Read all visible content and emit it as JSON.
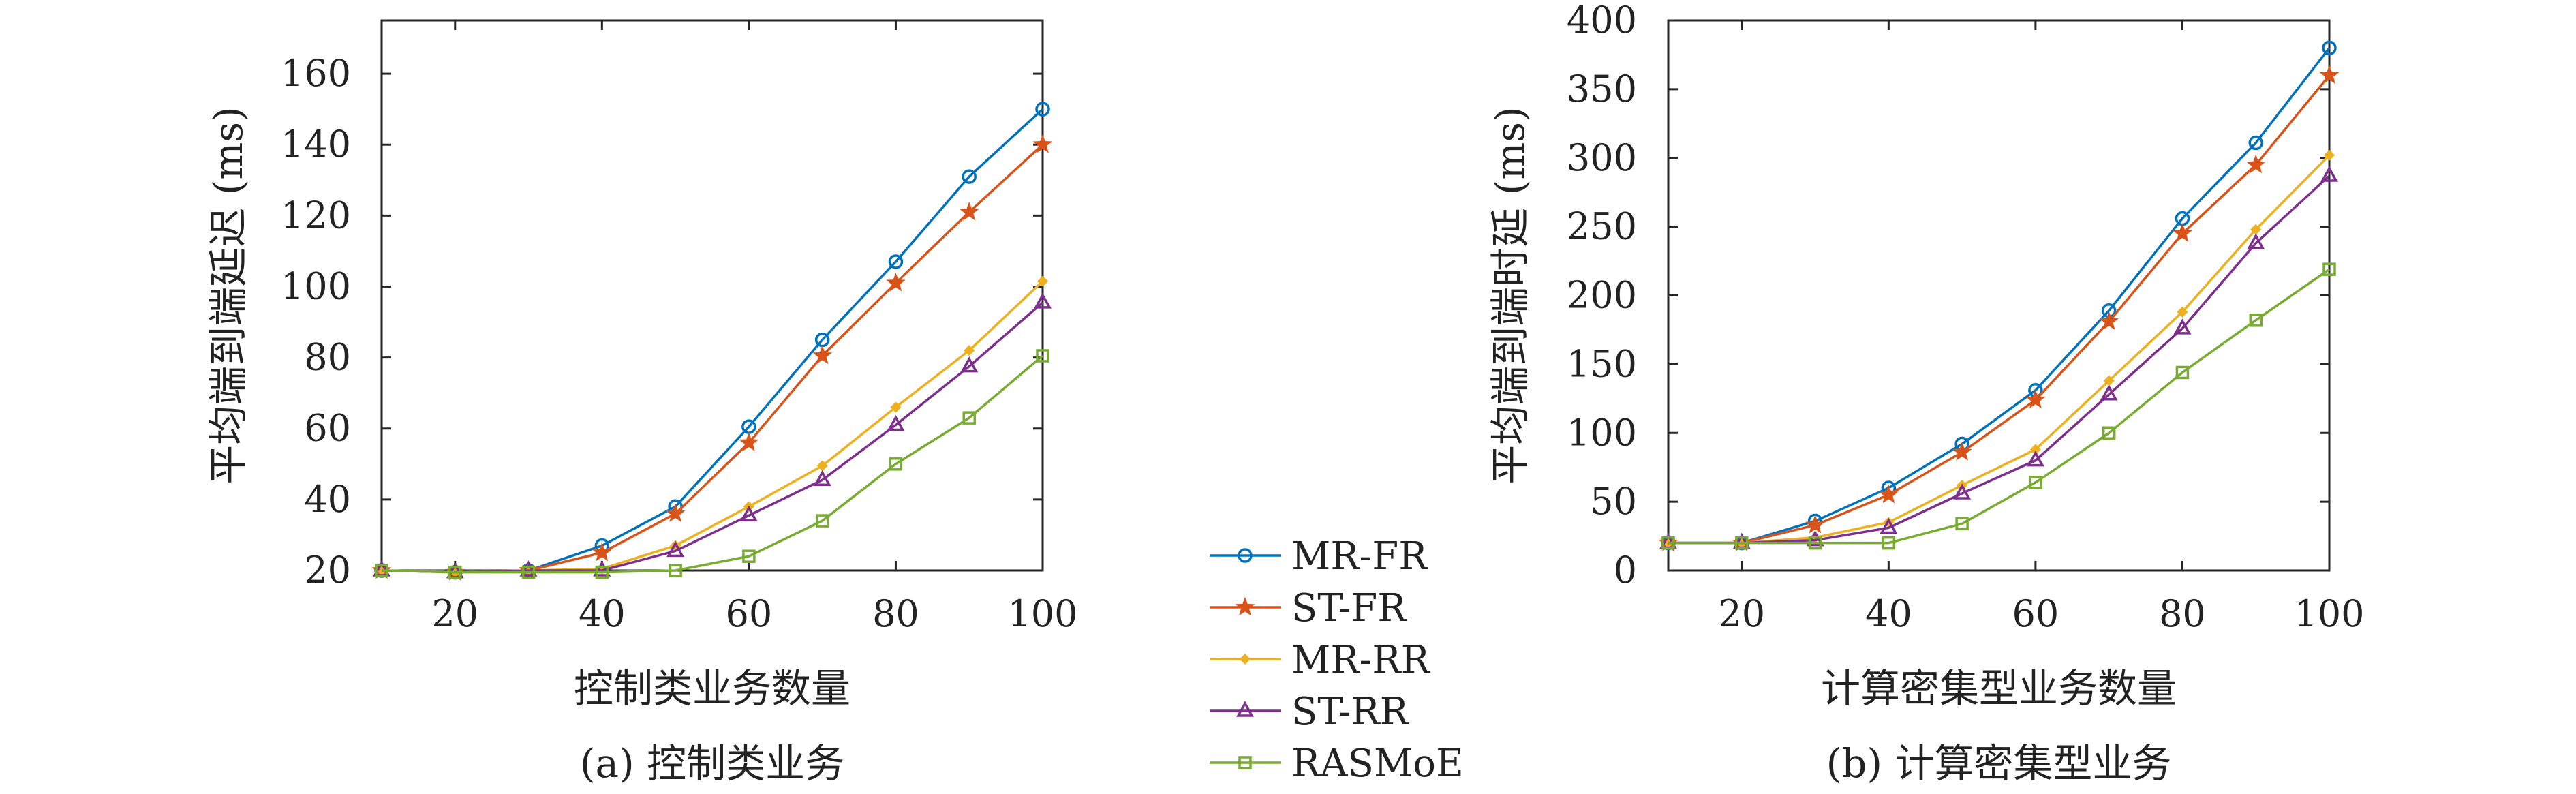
{
  "legend": {
    "placement": "center-bottom",
    "entries": [
      {
        "name": "MR-FR",
        "color": "#0072BD",
        "marker": "circle"
      },
      {
        "name": "ST-FR",
        "color": "#D95319",
        "marker": "star"
      },
      {
        "name": "MR-RR",
        "color": "#EDB120",
        "marker": "diamond"
      },
      {
        "name": "ST-RR",
        "color": "#7E2F8E",
        "marker": "triangle"
      },
      {
        "name": "RASMoE",
        "color": "#77AC30",
        "marker": "square"
      }
    ]
  },
  "chart_data": [
    {
      "type": "line",
      "caption": "(a) 控制类业务",
      "xlabel": "控制类业务数量",
      "ylabel": "平均端到端延迟 (ms)",
      "xlim": [
        10,
        100
      ],
      "ylim": [
        20,
        175
      ],
      "xticks": [
        20,
        40,
        60,
        80,
        100
      ],
      "yticks": [
        20,
        40,
        60,
        80,
        100,
        120,
        140,
        160
      ],
      "grid": false,
      "x": [
        10,
        20,
        30,
        40,
        50,
        60,
        70,
        80,
        90,
        100
      ],
      "series": [
        {
          "name": "MR-FR",
          "values": [
            20,
            19.5,
            20,
            27,
            38,
            60.5,
            85,
            107,
            131,
            150
          ]
        },
        {
          "name": "ST-FR",
          "values": [
            20,
            19.5,
            20,
            25,
            36,
            56,
            80.5,
            101,
            121,
            140
          ]
        },
        {
          "name": "MR-RR",
          "values": [
            20,
            19.5,
            20,
            20.5,
            27,
            38,
            49.5,
            66,
            82,
            101.5
          ]
        },
        {
          "name": "ST-RR",
          "values": [
            20,
            19.5,
            20,
            20,
            25.5,
            35.5,
            45.5,
            61,
            77.5,
            95.5
          ]
        },
        {
          "name": "RASMoE",
          "values": [
            20,
            19.5,
            19.5,
            19.5,
            20,
            24,
            34,
            50,
            63,
            80.5
          ]
        }
      ]
    },
    {
      "type": "line",
      "caption": "(b) 计算密集型业务",
      "xlabel": "计算密集型业务数量",
      "ylabel": "平均端到端时延 (ms)",
      "xlim": [
        10,
        100
      ],
      "ylim": [
        0,
        400
      ],
      "xticks": [
        20,
        40,
        60,
        80,
        100
      ],
      "yticks": [
        0,
        50,
        100,
        150,
        200,
        250,
        300,
        350,
        400
      ],
      "grid": false,
      "x": [
        10,
        20,
        30,
        40,
        50,
        60,
        70,
        80,
        90,
        100
      ],
      "series": [
        {
          "name": "MR-FR",
          "values": [
            20,
            20,
            36,
            60,
            92,
            131,
            189,
            256,
            311,
            380
          ]
        },
        {
          "name": "ST-FR",
          "values": [
            20,
            20,
            33,
            55,
            86,
            124,
            181,
            245,
            295,
            360
          ]
        },
        {
          "name": "MR-RR",
          "values": [
            20,
            20,
            24,
            35,
            62,
            88,
            138,
            188,
            248,
            302
          ]
        },
        {
          "name": "ST-RR",
          "values": [
            20,
            20,
            22,
            31,
            56,
            80,
            128,
            176,
            238,
            287
          ]
        },
        {
          "name": "RASMoE",
          "values": [
            20,
            20,
            20,
            20,
            34,
            64,
            100,
            144,
            182,
            219
          ]
        }
      ]
    }
  ]
}
